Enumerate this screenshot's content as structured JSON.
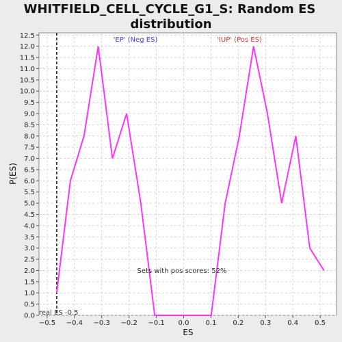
{
  "chart_data": {
    "type": "line",
    "title_lines": [
      "WHITFIELD_CELL_CYCLE_G1_S: Random ES",
      "distribution"
    ],
    "xlabel": "ES",
    "ylabel": "P(ES)",
    "xlim": [
      -0.53,
      0.56
    ],
    "ylim": [
      0,
      12.6
    ],
    "x_ticks": [
      -0.5,
      -0.4,
      -0.3,
      -0.2,
      -0.1,
      0.0,
      0.1,
      0.2,
      0.3,
      0.4,
      0.5
    ],
    "x_tick_labels": [
      "−0.5",
      "−0.4",
      "−0.3",
      "−0.2",
      "−0.1",
      "0.0",
      "0.1",
      "0.2",
      "0.3",
      "0.4",
      "0.5"
    ],
    "y_ticks": [
      0.0,
      0.5,
      1.0,
      1.5,
      2.0,
      2.5,
      3.0,
      3.5,
      4.0,
      4.5,
      5.0,
      5.5,
      6.0,
      6.5,
      7.0,
      7.5,
      8.0,
      8.5,
      9.0,
      9.5,
      10.0,
      10.5,
      11.0,
      11.5,
      12.0,
      12.5
    ],
    "y_tick_labels": [
      "0.0",
      "0.5",
      "1.0",
      "1.5",
      "2.0",
      "2.5",
      "3.0",
      "3.5",
      "4.0",
      "4.5",
      "5.0",
      "5.5",
      "6.0",
      "6.5",
      "7.0",
      "7.5",
      "8.0",
      "8.5",
      "9.0",
      "9.5",
      "10.0",
      "10.5",
      "11.0",
      "11.5",
      "12.0",
      "12.5"
    ],
    "grid": true,
    "series": [
      {
        "color": "#ff33ff",
        "x": [
          -0.465,
          -0.415,
          -0.365,
          -0.313,
          -0.261,
          -0.209,
          -0.157,
          -0.106,
          -0.054,
          -0.002,
          0.049,
          0.101,
          0.152,
          0.204,
          0.256,
          0.307,
          0.359,
          0.411,
          0.462,
          0.514
        ],
        "y": [
          1.0,
          6.0,
          8.0,
          12.0,
          7.0,
          9.0,
          5.0,
          0.0,
          0.0,
          0.0,
          0.0,
          0.0,
          5.0,
          8.0,
          12.0,
          9.0,
          5.0,
          8.0,
          3.0,
          2.0
        ]
      }
    ],
    "real_es": {
      "x": -0.465,
      "label": "real ES -0.5",
      "color": "#333333"
    },
    "annotations": {
      "neg_label": "'EP' (Neg ES)",
      "neg_color": "#4444dd",
      "pos_label": "'IUP' (Pos ES)",
      "pos_color": "#dd3333",
      "sets_text": "Sets with pos scores: 52%"
    }
  }
}
